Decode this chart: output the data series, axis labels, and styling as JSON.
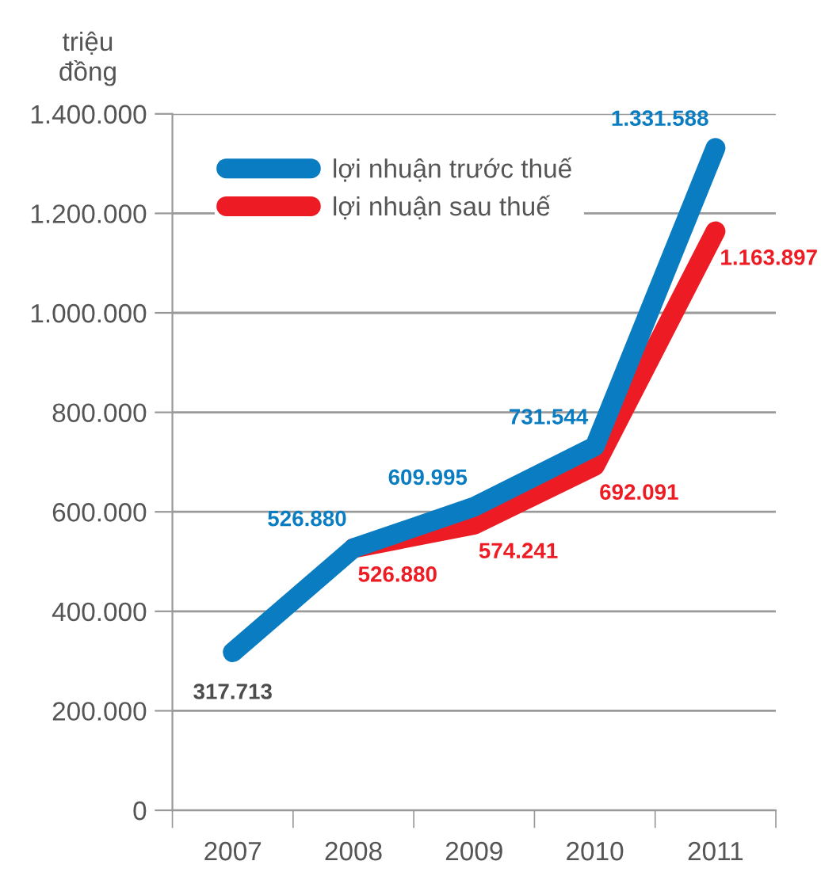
{
  "chart_data": {
    "type": "line",
    "ylabel": "triệu\nđồng",
    "categories": [
      "2007",
      "2008",
      "2009",
      "2010",
      "2011"
    ],
    "series": [
      {
        "name": "lợi nhuận trước thuế",
        "color": "#0a7dc2",
        "values": [
          317713,
          526880,
          609995,
          731544,
          1331588
        ],
        "value_labels": [
          null,
          "526.880",
          "609.995",
          "731.544",
          "1.331.588"
        ]
      },
      {
        "name": "lợi nhuận sau thuế",
        "color": "#ed1c24",
        "values": [
          null,
          526880,
          574241,
          692091,
          1163897
        ],
        "value_labels": [
          null,
          "526.880",
          "574.241",
          "692.091",
          "1.163.897"
        ]
      }
    ],
    "annotations": [
      {
        "text": "317.713",
        "x": "2007",
        "y": 317713
      }
    ],
    "ylim": [
      0,
      1400000
    ],
    "yticks": [
      {
        "value": 0,
        "label": "0"
      },
      {
        "value": 200000,
        "label": "200.000"
      },
      {
        "value": 400000,
        "label": "400.000"
      },
      {
        "value": 600000,
        "label": "600.000"
      },
      {
        "value": 800000,
        "label": "800.000"
      },
      {
        "value": 1000000,
        "label": "1.000.000"
      },
      {
        "value": 1200000,
        "label": "1.200.000"
      },
      {
        "value": 1400000,
        "label": "1.400.000"
      }
    ],
    "grid": "y",
    "legend": "top left",
    "line_style": "solid"
  }
}
